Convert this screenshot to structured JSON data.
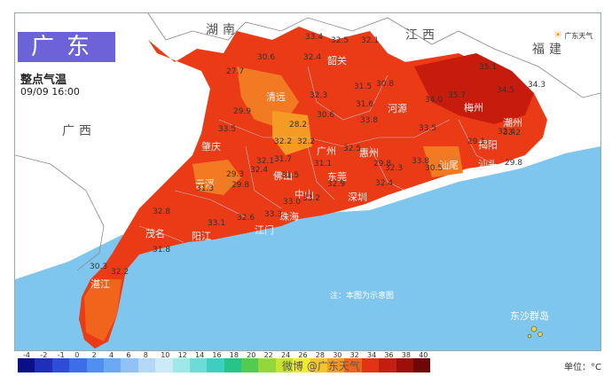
{
  "map": {
    "title": "广东",
    "subtitle": "整点气温",
    "time": "09/09 16:00",
    "logo_text": "广东天气",
    "note": "注：本图为示意图",
    "watermark": "微博 @广东天气",
    "neighbors": {
      "hunan": "湖南",
      "jiangxi": "江西",
      "fujian": "福建",
      "guangxi": "广西"
    },
    "cities": {
      "shaoguan": "韶关",
      "qingyuan": "清远",
      "heyuan": "河源",
      "meizhou": "梅州",
      "chaozhou": "潮州",
      "jieyang": "揭阳",
      "shantou": "汕头",
      "shanwei": "汕尾",
      "huizhou": "惠州",
      "guangzhou": "广州",
      "zhaoqing": "肇庆",
      "foshan": "佛山",
      "dongguan": "东莞",
      "yunfu": "云浮",
      "zhongshan": "中山",
      "shenzhen": "深圳",
      "zhuhai": "珠海",
      "jiangmen": "江门",
      "maoming": "茂名",
      "yangjiang": "阳江",
      "zhanjiang": "湛江",
      "dongsha": "东沙群岛"
    },
    "values": {
      "v1": "30.6",
      "v2": "33.4",
      "v3": "32.5",
      "v4": "32.4",
      "v5": "32.1",
      "v6": "27.7",
      "v7": "35.1",
      "v8": "34.5",
      "v9": "34.3",
      "v10": "32.3",
      "v11": "31.5",
      "v12": "30.8",
      "v13": "34.0",
      "v14": "35.7",
      "v15": "29.9",
      "v16": "30.6",
      "v17": "31.6",
      "v18": "33.8",
      "v19": "33.2",
      "v20": "33.5",
      "v21": "28.2",
      "v22": "33.5",
      "v23": "32.4",
      "v24": "32.2",
      "v25": "32.2",
      "v26": "29.1",
      "v27": "32.1",
      "v28": "31.1",
      "v29": "32.5",
      "v30": "29.8",
      "v31": "33.8",
      "v32": "29.3",
      "v33": "32.4",
      "v34": "31.7",
      "v35": "32.3",
      "v36": "30.5",
      "v37": "29.8",
      "v38": "31.5",
      "v39": "29.8",
      "v40": "31.3",
      "v41": "32.8",
      "v42": "33.1",
      "v43": "32.6",
      "v44": "33.3",
      "v45": "33.0",
      "v46": "31.8",
      "v47": "32.2",
      "v48": "30.3",
      "v49": "32.9",
      "v50": "33.2",
      "v51": "32.4"
    },
    "legend": {
      "unit": "单位：°C",
      "ticks": [
        "-4",
        "-2",
        "-1",
        "0",
        "2",
        "4",
        "6",
        "8",
        "10",
        "12",
        "14",
        "16",
        "18",
        "20",
        "22",
        "24",
        "26",
        "28",
        "30",
        "32",
        "34",
        "36",
        "38",
        "40"
      ],
      "colors": [
        "#0b0f85",
        "#1f2fb8",
        "#2d4cd8",
        "#3b6ee8",
        "#4f8ff0",
        "#6aa9f3",
        "#8fc3f6",
        "#b5d8f8",
        "#ccebf6",
        "#9fe8e8",
        "#6ddbd6",
        "#3dd0c0",
        "#27c48a",
        "#52cc4f",
        "#93d83a",
        "#c8e42e",
        "#f2ea2c",
        "#f5c428",
        "#f59a23",
        "#f0641c",
        "#e23414",
        "#c51d10",
        "#9c100a",
        "#6e0806"
      ]
    }
  }
}
